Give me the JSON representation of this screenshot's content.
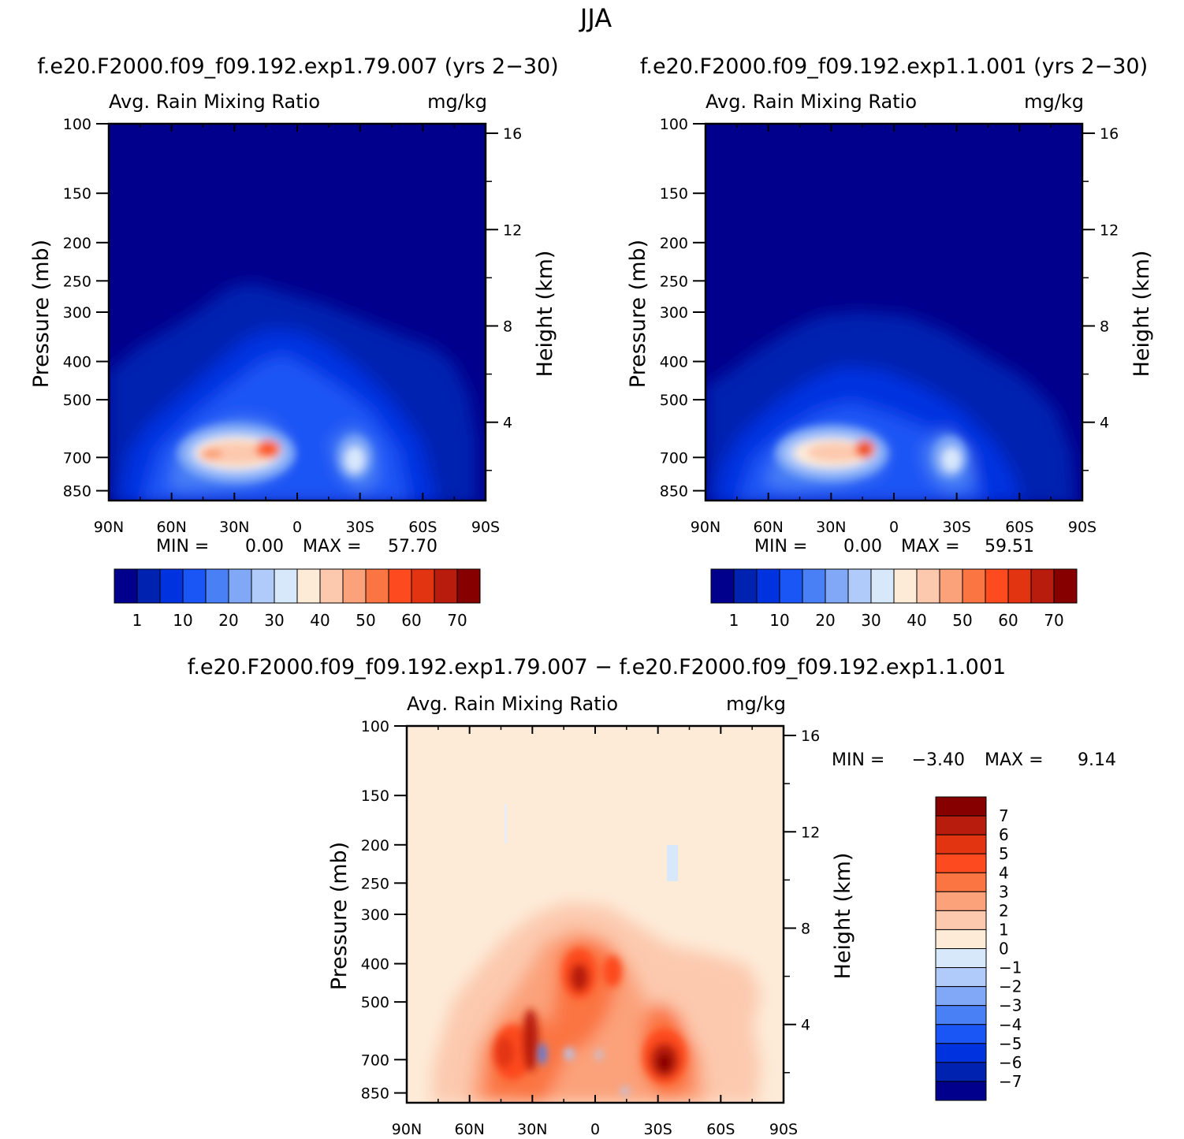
{
  "page_title": "JJA",
  "colors": {
    "abs_palette": [
      "#00008c",
      "#0022b0",
      "#0033e0",
      "#1a55f5",
      "#4a80f5",
      "#80a8f7",
      "#b0cbfa",
      "#d8e8fb",
      "#fdebd8",
      "#fcc9ae",
      "#fba27a",
      "#fb7542",
      "#fd4a1e",
      "#e33412",
      "#b81c0c",
      "#870000"
    ],
    "diff_palette": [
      "#00008c",
      "#0022b0",
      "#0033e0",
      "#1a55f5",
      "#4a80f5",
      "#80a8f7",
      "#b0cbfa",
      "#d8e8fb",
      "#fdebd8",
      "#fcc9ae",
      "#fba27a",
      "#fb7542",
      "#fd4a1e",
      "#e33412",
      "#b81c0c",
      "#870000"
    ]
  },
  "chart_data": [
    {
      "type": "heatmap",
      "case_title": "f.e20.F2000.f09_f09.192.exp1.79.007 (yrs 2−30)",
      "variable": "Avg. Rain Mixing Ratio",
      "units": "mg/kg",
      "ylabel": "Pressure (mb)",
      "ylabel_right": "Height (km)",
      "x_ticks": [
        "90N",
        "60N",
        "30N",
        "0",
        "30S",
        "60S",
        "90S"
      ],
      "y_ticks": [
        100,
        150,
        200,
        250,
        300,
        400,
        500,
        700,
        850
      ],
      "y_right_ticks": [
        16,
        12,
        8,
        4
      ],
      "min_label": "MIN =",
      "min_value": "0.00",
      "max_label": "MAX =",
      "max_value": "57.70",
      "colorbar_labels": [
        "1",
        "10",
        "20",
        "30",
        "40",
        "50",
        "60",
        "70"
      ],
      "max_location": {
        "lat": 14,
        "pressure": 700,
        "value": 57.7
      }
    },
    {
      "type": "heatmap",
      "case_title": "f.e20.F2000.f09_f09.192.exp1.1.001 (yrs 2−30)",
      "variable": "Avg. Rain Mixing Ratio",
      "units": "mg/kg",
      "ylabel": "Pressure (mb)",
      "ylabel_right": "Height (km)",
      "x_ticks": [
        "90N",
        "60N",
        "30N",
        "0",
        "30S",
        "60S",
        "90S"
      ],
      "y_ticks": [
        100,
        150,
        200,
        250,
        300,
        400,
        500,
        700,
        850
      ],
      "y_right_ticks": [
        16,
        12,
        8,
        4
      ],
      "min_label": "MIN =",
      "min_value": "0.00",
      "max_label": "MAX =",
      "max_value": "59.51",
      "colorbar_labels": [
        "1",
        "10",
        "20",
        "30",
        "40",
        "50",
        "60",
        "70"
      ],
      "max_location": {
        "lat": 13,
        "pressure": 700,
        "value": 59.51
      }
    },
    {
      "type": "heatmap",
      "case_title": "f.e20.F2000.f09_f09.192.exp1.79.007 − f.e20.F2000.f09_f09.192.exp1.1.001",
      "variable": "Avg. Rain Mixing Ratio",
      "units": "mg/kg",
      "ylabel": "Pressure (mb)",
      "ylabel_right": "Height (km)",
      "x_ticks": [
        "90N",
        "60N",
        "30N",
        "0",
        "30S",
        "60S",
        "90S"
      ],
      "y_ticks": [
        100,
        150,
        200,
        250,
        300,
        400,
        500,
        700,
        850
      ],
      "y_right_ticks": [
        16,
        12,
        8,
        4
      ],
      "min_label": "MIN =",
      "min_value": "−3.40",
      "max_label": "MAX =",
      "max_value": "9.14",
      "colorbar_labels": [
        "7",
        "6",
        "5",
        "4",
        "3",
        "2",
        "1",
        "0",
        "−1",
        "−2",
        "−3",
        "−4",
        "−5",
        "−6",
        "−7"
      ],
      "max_location": {
        "lat": -33,
        "pressure": 700,
        "value": 9.14
      }
    }
  ]
}
